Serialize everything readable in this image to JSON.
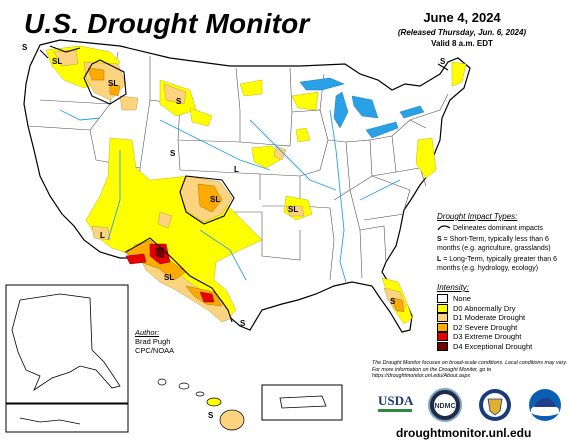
{
  "header": {
    "title": "U.S. Drought Monitor",
    "date": "June 4, 2024",
    "released": "(Released Thursday, Jun. 6, 2024)",
    "valid": "Valid 8 a.m. EDT"
  },
  "map_labels": {
    "s": "S",
    "sl": "SL",
    "l": "L"
  },
  "impact_types": {
    "title": "Drought Impact Types:",
    "delineates": "Delineates dominant impacts",
    "short_key": "S",
    "short_text": "= Short-Term, typically less than 6 months (e.g. agriculture, grasslands)",
    "long_key": "L",
    "long_text": "= Long-Term, typically greater than 6 months (e.g. hydrology, ecology)"
  },
  "intensity": {
    "title": "Intensity:",
    "levels": [
      {
        "label": "None",
        "color": "#ffffff"
      },
      {
        "label": "D0 Abnormally Dry",
        "color": "#ffff00"
      },
      {
        "label": "D1 Moderate Drought",
        "color": "#fcd37f"
      },
      {
        "label": "D2 Severe Drought",
        "color": "#ffaa00"
      },
      {
        "label": "D3 Extreme Drought",
        "color": "#e60000"
      },
      {
        "label": "D4 Exceptional Drought",
        "color": "#730000"
      }
    ]
  },
  "author": {
    "title": "Author:",
    "name": "Brad Pugh",
    "org": "CPC/NOAA"
  },
  "disclaimer": "The Drought Monitor focuses on broad-scale conditions. Local conditions may vary. For more information on the Drought Monitor, go to https://droughtmonitor.unl.edu/About.aspx",
  "logos": {
    "usda": "USDA",
    "ndmc": "NDMC"
  },
  "website": "droughtmonitor.unl.edu",
  "colors": {
    "water": "#2aa0e6",
    "border": "#000000",
    "d0": "#ffff00",
    "d1": "#fcd37f",
    "d2": "#ffaa00",
    "d3": "#e60000",
    "d4": "#730000"
  }
}
